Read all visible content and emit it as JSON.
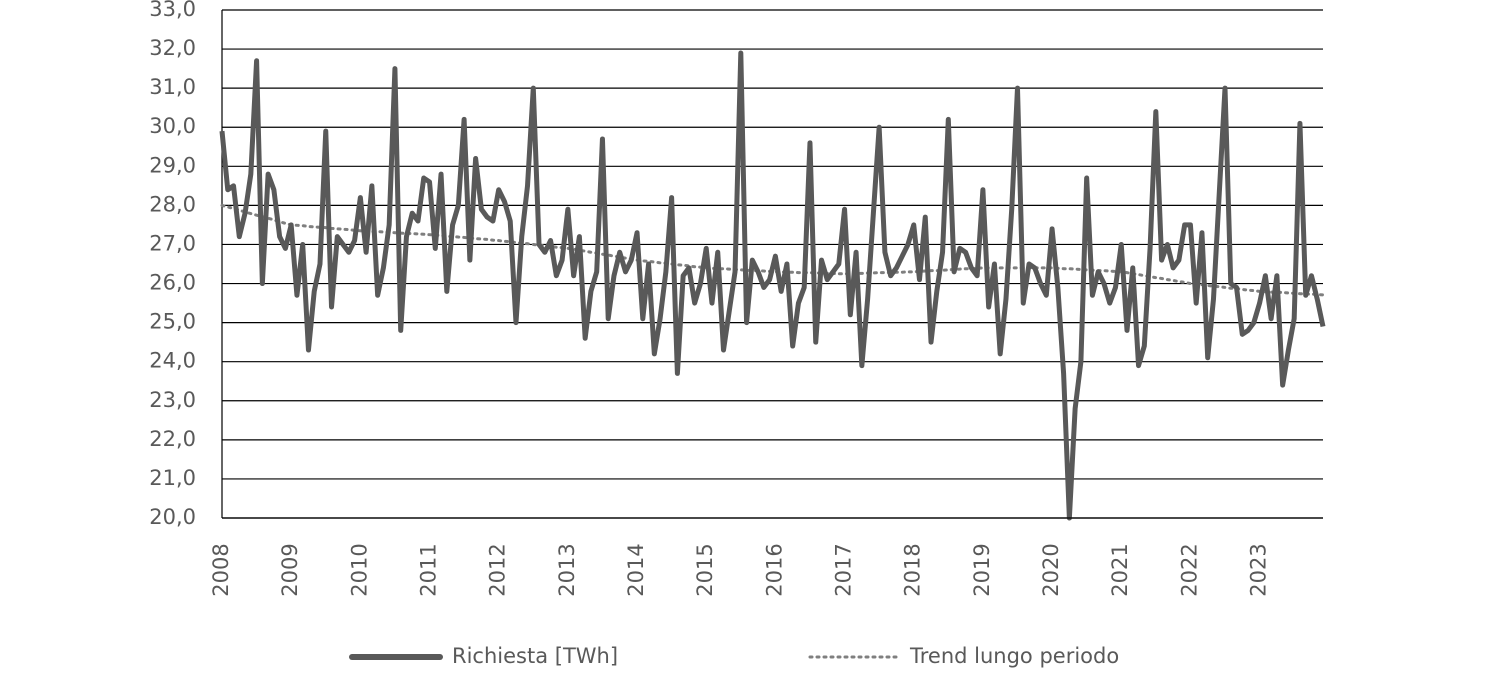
{
  "chart_data": {
    "type": "line",
    "categories": [
      "2008",
      null,
      null,
      null,
      null,
      null,
      null,
      null,
      null,
      null,
      null,
      null,
      "2009",
      null,
      null,
      null,
      null,
      null,
      null,
      null,
      null,
      null,
      null,
      null,
      "2010",
      null,
      null,
      null,
      null,
      null,
      null,
      null,
      null,
      null,
      null,
      null,
      "2011",
      null,
      null,
      null,
      null,
      null,
      null,
      null,
      null,
      null,
      null,
      null,
      "2012",
      null,
      null,
      null,
      null,
      null,
      null,
      null,
      null,
      null,
      null,
      null,
      "2013",
      null,
      null,
      null,
      null,
      null,
      null,
      null,
      null,
      null,
      null,
      null,
      "2014",
      null,
      null,
      null,
      null,
      null,
      null,
      null,
      null,
      null,
      null,
      null,
      "2015",
      null,
      null,
      null,
      null,
      null,
      null,
      null,
      null,
      null,
      null,
      null,
      "2016",
      null,
      null,
      null,
      null,
      null,
      null,
      null,
      null,
      null,
      null,
      null,
      "2017",
      null,
      null,
      null,
      null,
      null,
      null,
      null,
      null,
      null,
      null,
      null,
      "2018",
      null,
      null,
      null,
      null,
      null,
      null,
      null,
      null,
      null,
      null,
      null,
      "2019",
      null,
      null,
      null,
      null,
      null,
      null,
      null,
      null,
      null,
      null,
      null,
      "2020",
      null,
      null,
      null,
      null,
      null,
      null,
      null,
      null,
      null,
      null,
      null,
      "2021",
      null,
      null,
      null,
      null,
      null,
      null,
      null,
      null,
      null,
      null,
      null,
      "2022",
      null,
      null,
      null,
      null,
      null,
      null,
      null,
      null,
      null,
      null,
      null,
      "2023",
      null,
      null,
      null,
      null,
      null,
      null,
      null,
      null,
      null,
      null,
      null
    ],
    "series": [
      {
        "name": "Richiesta [TWh]",
        "color": "#595959",
        "style": "solid",
        "values": [
          29.9,
          28.4,
          28.5,
          27.2,
          27.8,
          28.8,
          31.7,
          26.0,
          28.8,
          28.4,
          27.2,
          26.9,
          27.5,
          25.7,
          27.0,
          24.3,
          25.8,
          26.5,
          29.9,
          25.4,
          27.2,
          27.0,
          26.8,
          27.1,
          28.2,
          26.8,
          28.5,
          25.7,
          26.4,
          27.5,
          31.5,
          24.8,
          27.2,
          27.8,
          27.6,
          28.7,
          28.6,
          26.9,
          28.8,
          25.8,
          27.5,
          28.0,
          30.2,
          26.6,
          29.2,
          27.9,
          27.7,
          27.6,
          28.4,
          28.1,
          27.6,
          25.0,
          27.2,
          28.5,
          31.0,
          27.0,
          26.8,
          27.1,
          26.2,
          26.6,
          27.9,
          26.2,
          27.2,
          24.6,
          25.8,
          26.3,
          29.7,
          25.1,
          26.2,
          26.8,
          26.3,
          26.6,
          27.3,
          25.1,
          26.5,
          24.2,
          25.1,
          26.3,
          28.2,
          23.7,
          26.2,
          26.4,
          25.5,
          26.0,
          26.9,
          25.5,
          26.8,
          24.3,
          25.3,
          26.3,
          31.9,
          25.0,
          26.6,
          26.3,
          25.9,
          26.1,
          26.7,
          25.8,
          26.5,
          24.4,
          25.5,
          25.9,
          29.6,
          24.5,
          26.6,
          26.1,
          26.3,
          26.5,
          27.9,
          25.2,
          26.8,
          23.9,
          25.6,
          27.8,
          30.0,
          26.8,
          26.2,
          26.4,
          26.7,
          27.0,
          27.5,
          26.1,
          27.7,
          24.5,
          25.8,
          26.8,
          30.2,
          26.3,
          26.9,
          26.8,
          26.4,
          26.2,
          28.4,
          25.4,
          26.5,
          24.2,
          25.6,
          27.9,
          31.0,
          25.5,
          26.5,
          26.4,
          26.0,
          25.7,
          27.4,
          25.9,
          23.7,
          20.0,
          22.8,
          24.0,
          28.7,
          25.7,
          26.3,
          26.0,
          25.5,
          25.9,
          27.0,
          24.8,
          26.4,
          23.9,
          24.4,
          26.9,
          30.4,
          26.6,
          27.0,
          26.4,
          26.6,
          27.5,
          27.5,
          25.5,
          27.3,
          24.1,
          25.6,
          28.3,
          31.0,
          26.0,
          25.9,
          24.7,
          24.8,
          25.0,
          25.5,
          26.2,
          25.1,
          26.2,
          23.4,
          24.3,
          25.1,
          30.1,
          25.7,
          26.2,
          25.6,
          24.9
        ]
      },
      {
        "name": "Trend lungo periodo",
        "color": "#7f7f7f",
        "style": "dotted",
        "values": [
          28.0,
          27.96,
          27.92,
          27.88,
          27.83,
          27.79,
          27.75,
          27.71,
          27.67,
          27.63,
          27.58,
          27.54,
          27.5,
          27.49,
          27.48,
          27.46,
          27.45,
          27.44,
          27.43,
          27.41,
          27.4,
          27.39,
          27.38,
          27.36,
          27.35,
          27.34,
          27.33,
          27.33,
          27.32,
          27.31,
          27.3,
          27.29,
          27.28,
          27.28,
          27.27,
          27.26,
          27.25,
          27.24,
          27.23,
          27.21,
          27.2,
          27.19,
          27.18,
          27.16,
          27.15,
          27.14,
          27.13,
          27.11,
          27.1,
          27.08,
          27.07,
          27.05,
          27.03,
          27.02,
          27.0,
          26.98,
          26.97,
          26.95,
          26.93,
          26.92,
          26.9,
          26.88,
          26.85,
          26.83,
          26.8,
          26.78,
          26.75,
          26.73,
          26.7,
          26.68,
          26.65,
          26.63,
          26.6,
          26.58,
          26.57,
          26.55,
          26.53,
          26.52,
          26.5,
          26.48,
          26.47,
          26.45,
          26.43,
          26.42,
          26.4,
          26.39,
          26.38,
          26.38,
          26.37,
          26.36,
          26.35,
          26.34,
          26.33,
          26.33,
          26.32,
          26.31,
          26.3,
          26.3,
          26.29,
          26.29,
          26.28,
          26.28,
          26.28,
          26.27,
          26.27,
          26.26,
          26.26,
          26.25,
          26.25,
          26.25,
          26.26,
          26.26,
          26.27,
          26.27,
          26.28,
          26.28,
          26.28,
          26.29,
          26.29,
          26.3,
          26.3,
          26.31,
          26.32,
          26.33,
          26.33,
          26.34,
          26.35,
          26.36,
          26.37,
          26.38,
          26.38,
          26.39,
          26.4,
          26.4,
          26.4,
          26.4,
          26.4,
          26.4,
          26.4,
          26.4,
          26.4,
          26.4,
          26.4,
          26.4,
          26.4,
          26.39,
          26.38,
          26.38,
          26.37,
          26.36,
          26.35,
          26.34,
          26.33,
          26.33,
          26.32,
          26.31,
          26.3,
          26.28,
          26.25,
          26.23,
          26.2,
          26.18,
          26.15,
          26.13,
          26.1,
          26.08,
          26.05,
          26.03,
          26.0,
          25.98,
          25.97,
          25.95,
          25.93,
          25.92,
          25.9,
          25.88,
          25.87,
          25.85,
          25.83,
          25.82,
          25.8,
          25.79,
          25.78,
          25.78,
          25.77,
          25.76,
          25.75,
          25.74,
          25.73,
          25.73,
          25.72,
          25.71
        ]
      }
    ],
    "ylim": [
      20,
      33
    ],
    "yticks": [
      {
        "value": 20,
        "label": "20,0"
      },
      {
        "value": 21,
        "label": "21,0"
      },
      {
        "value": 22,
        "label": "22,0"
      },
      {
        "value": 23,
        "label": "23,0"
      },
      {
        "value": 24,
        "label": "24,0"
      },
      {
        "value": 25,
        "label": "25,0"
      },
      {
        "value": 26,
        "label": "26,0"
      },
      {
        "value": 27,
        "label": "27,0"
      },
      {
        "value": 28,
        "label": "28,0"
      },
      {
        "value": 29,
        "label": "29,0"
      },
      {
        "value": 30,
        "label": "30,0"
      },
      {
        "value": 31,
        "label": "31,0"
      },
      {
        "value": 32,
        "label": "32,0"
      },
      {
        "value": 33,
        "label": "33,0"
      }
    ],
    "grid": true,
    "legend": "bottom"
  }
}
